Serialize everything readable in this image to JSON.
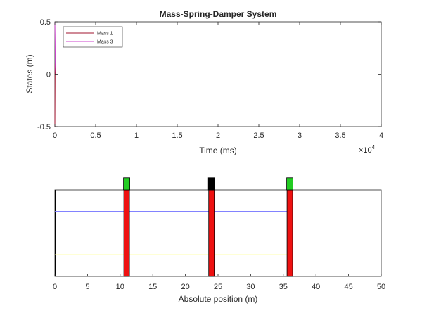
{
  "colors": {
    "axis": "#262626",
    "mass1": "#a2142f",
    "mass3": "#cc44cc",
    "bar": "#ee1111",
    "cap_green": "#22cc22",
    "cap_black": "#000000",
    "line_blue": "#7070ff",
    "line_yellow": "#ffff90"
  },
  "chart_data": [
    {
      "type": "line",
      "title": "Mass-Spring-Damper System",
      "xlabel": "Time (ms)",
      "ylabel": "States (m)",
      "xlim": [
        0,
        40000
      ],
      "ylim": [
        -0.5,
        0.5
      ],
      "x_ticks": [
        0,
        5000,
        10000,
        15000,
        20000,
        25000,
        30000,
        35000,
        40000
      ],
      "x_tick_labels": [
        "0",
        "0.5",
        "1",
        "1.5",
        "2",
        "2.5",
        "3",
        "3.5",
        "4"
      ],
      "x_exponent": "×10",
      "x_exponent_power": "4",
      "y_ticks": [
        -0.5,
        0,
        0.5
      ],
      "y_tick_labels": [
        "-0.5",
        "0",
        "0.5"
      ],
      "legend_position": "top-left",
      "grid": false,
      "series": [
        {
          "name": "Mass 1",
          "color_key": "mass1",
          "x": [
            0,
            30,
            60,
            120
          ],
          "y": [
            -0.5,
            0.1,
            0.02,
            0.0
          ]
        },
        {
          "name": "Mass 3",
          "color_key": "mass3",
          "x": [
            0,
            30,
            60,
            120
          ],
          "y": [
            0.5,
            0.33,
            0.08,
            0.0
          ]
        }
      ]
    },
    {
      "type": "animation",
      "xlabel": "Absolute position (m)",
      "xlim": [
        0,
        50
      ],
      "ylim": [
        0,
        1
      ],
      "x_ticks": [
        0,
        5,
        10,
        15,
        20,
        25,
        30,
        35,
        40,
        45,
        50
      ],
      "x_tick_labels": [
        "0",
        "5",
        "10",
        "15",
        "20",
        "25",
        "30",
        "35",
        "40",
        "45",
        "50"
      ],
      "grid": false,
      "wall_x": 0,
      "masses": [
        {
          "x": 11,
          "cap_color_key": "cap_green"
        },
        {
          "x": 24,
          "cap_color_key": "cap_black"
        },
        {
          "x": 36,
          "cap_color_key": "cap_green"
        }
      ],
      "mass_height": [
        0,
        1
      ],
      "cap_height": [
        1.0,
        1.14
      ],
      "links": [
        {
          "color_key": "line_blue",
          "from": 0,
          "to": 36,
          "y": 0.75
        },
        {
          "color_key": "line_yellow",
          "from": 0,
          "to": 36,
          "y": 0.25
        }
      ]
    }
  ]
}
